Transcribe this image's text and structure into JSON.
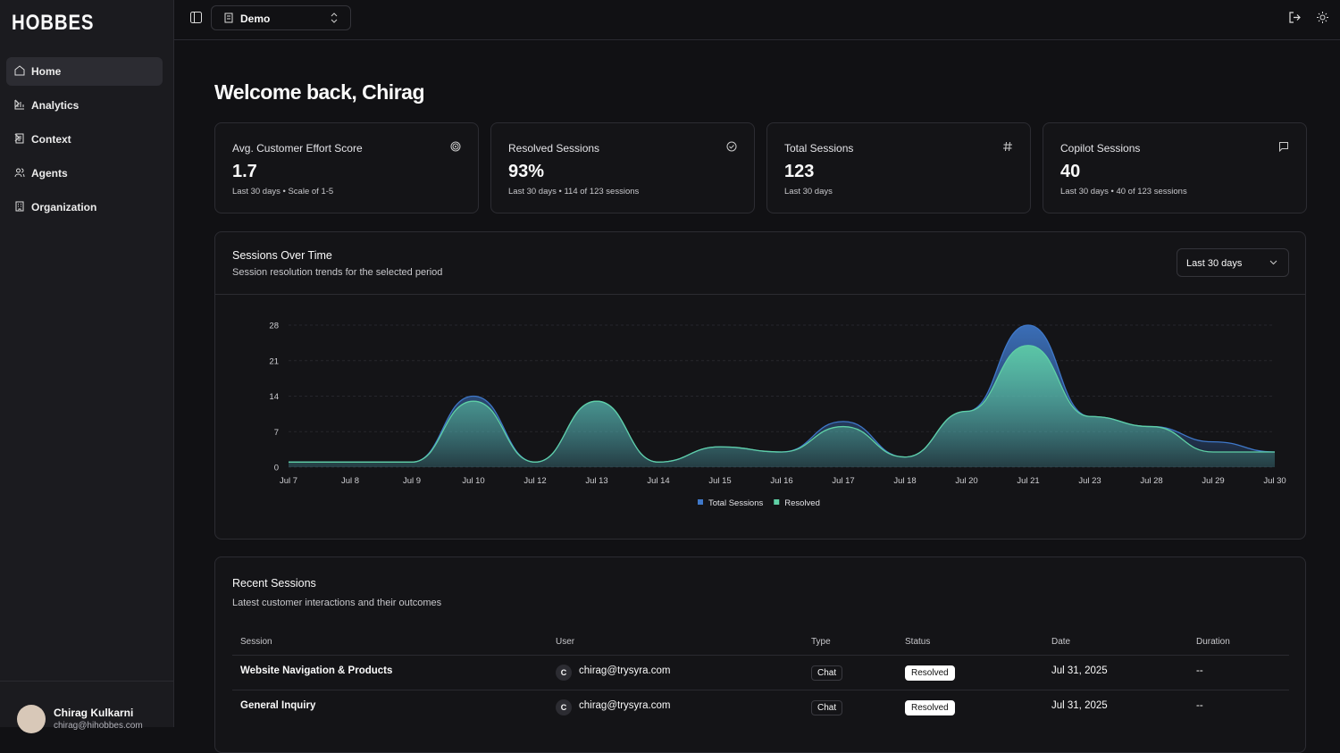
{
  "sidebar": {
    "logo": "HOBBES",
    "nav": [
      {
        "label": "Home"
      },
      {
        "label": "Analytics"
      },
      {
        "label": "Context"
      },
      {
        "label": "Agents"
      },
      {
        "label": "Organization"
      }
    ],
    "user": {
      "name": "Chirag Kulkarni",
      "email": "chirag@hihobbes.com"
    }
  },
  "topbar": {
    "workspace": "Demo"
  },
  "page": {
    "title": "Welcome back, Chirag"
  },
  "stats": [
    {
      "label": "Avg. Customer Effort Score",
      "value": "1.7",
      "note": "Last 30 days • Scale of 1-5"
    },
    {
      "label": "Resolved Sessions",
      "value": "93%",
      "note": "Last 30 days • 114 of 123 sessions"
    },
    {
      "label": "Total Sessions",
      "value": "123",
      "note": "Last 30 days"
    },
    {
      "label": "Copilot Sessions",
      "value": "40",
      "note": "Last 30 days • 40 of 123 sessions"
    }
  ],
  "chart_data": {
    "type": "area",
    "title": "Sessions Over Time",
    "subtitle": "Session resolution trends for the selected period",
    "range_selector": "Last 30 days",
    "categories": [
      "Jul 7",
      "Jul 8",
      "Jul 9",
      "Jul 10",
      "Jul 12",
      "Jul 13",
      "Jul 14",
      "Jul 15",
      "Jul 16",
      "Jul 17",
      "Jul 18",
      "Jul 20",
      "Jul 21",
      "Jul 23",
      "Jul 28",
      "Jul 29",
      "Jul 30"
    ],
    "series": [
      {
        "name": "Total Sessions",
        "color": "#3f78c9",
        "values": [
          1,
          1,
          1,
          14,
          1,
          13,
          1,
          4,
          3,
          9,
          2,
          11,
          28,
          10,
          8,
          5,
          3
        ]
      },
      {
        "name": "Resolved",
        "color": "#5fd0a5",
        "values": [
          1,
          1,
          1,
          13,
          1,
          13,
          1,
          4,
          3,
          8,
          2,
          11,
          24,
          10,
          8,
          3,
          3
        ]
      }
    ],
    "ylim": [
      0,
      28
    ],
    "yticks": [
      0,
      7,
      14,
      21,
      28
    ],
    "grid": true,
    "legend": "bottom"
  },
  "recent": {
    "title": "Recent Sessions",
    "subtitle": "Latest customer interactions and their outcomes",
    "columns": [
      "Session",
      "User",
      "Type",
      "Status",
      "Date",
      "Duration"
    ],
    "rows": [
      {
        "session": "Website Navigation & Products",
        "initial": "C",
        "user": "chirag@trysyra.com",
        "type": "Chat",
        "status": "Resolved",
        "date": "Jul 31, 2025",
        "duration": "--"
      },
      {
        "session": "General Inquiry",
        "initial": "C",
        "user": "chirag@trysyra.com",
        "type": "Chat",
        "status": "Resolved",
        "date": "Jul 31, 2025",
        "duration": "--"
      }
    ]
  }
}
